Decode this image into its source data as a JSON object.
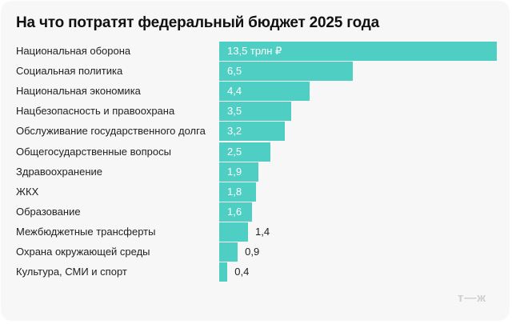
{
  "chart_data": {
    "type": "bar",
    "orientation": "horizontal",
    "title": "На что потратят федеральный бюджет 2025 года",
    "categories": [
      "Национальная оборона",
      "Социальная политика",
      "Национальная экономика",
      "Нацбезопасность и правоохрана",
      "Обслуживание государственного долга",
      "Общегосударственные вопросы",
      "Здравоохранение",
      "ЖКХ",
      "Образование",
      "Межбюджетные трансферты",
      "Охрана окружающей среды",
      "Культура, СМИ и спорт"
    ],
    "values": [
      13.5,
      6.5,
      4.4,
      3.5,
      3.2,
      2.5,
      1.9,
      1.8,
      1.6,
      1.4,
      0.9,
      0.4
    ],
    "data_labels": [
      "13,5 трлн ₽",
      "6,5",
      "4,4",
      "3,5",
      "3,2",
      "2,5",
      "1,9",
      "1,8",
      "1,6",
      "1,4",
      "0,9",
      "0,4"
    ],
    "unit": "трлн ₽",
    "bar_color": "#4fcfc3",
    "grid": false,
    "legend": "none"
  },
  "logo": "т—ж"
}
